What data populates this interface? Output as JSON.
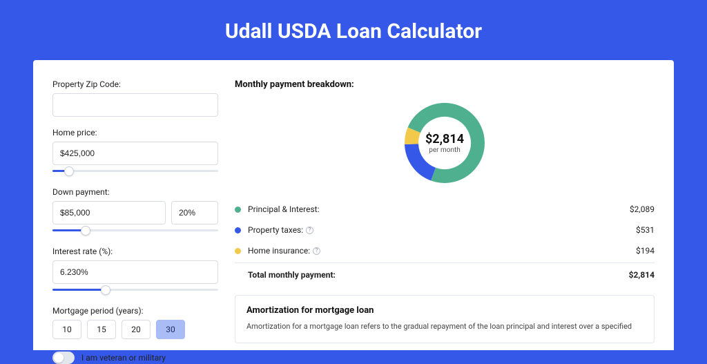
{
  "title": "Udall USDA Loan Calculator",
  "colors": {
    "page_bg": "#3558e8",
    "panel_bg": "#ffffff",
    "principal": "#4fb08f",
    "taxes": "#3558e8",
    "insurance": "#f3c94b",
    "track": "#e2e6ed",
    "border": "#d9dde3"
  },
  "form": {
    "zip": {
      "label": "Property Zip Code:",
      "value": ""
    },
    "home_price": {
      "label": "Home price:",
      "value": "$425,000",
      "slider_pct": 10
    },
    "down_payment": {
      "label": "Down payment:",
      "value": "$85,000",
      "pct_value": "20%",
      "slider_pct": 20
    },
    "interest": {
      "label": "Interest rate (%):",
      "value": "6.230%",
      "slider_pct": 32
    },
    "period": {
      "label": "Mortgage period (years):",
      "options": [
        "10",
        "15",
        "20",
        "30"
      ],
      "selected": "30"
    },
    "veteran": {
      "label": "I am veteran or military",
      "checked": false
    }
  },
  "breakdown": {
    "title": "Monthly payment breakdown:",
    "total_value": "$2,814",
    "total_sub": "per month",
    "items": [
      {
        "key": "principal",
        "label": "Principal & Interest:",
        "amount": "$2,089",
        "color": "#4fb08f",
        "info": false,
        "fraction": 0.742
      },
      {
        "key": "taxes",
        "label": "Property taxes:",
        "amount": "$531",
        "color": "#3558e8",
        "info": true,
        "fraction": 0.189
      },
      {
        "key": "insurance",
        "label": "Home insurance:",
        "amount": "$194",
        "color": "#f3c94b",
        "info": true,
        "fraction": 0.069
      }
    ],
    "total_row": {
      "label": "Total monthly payment:",
      "amount": "$2,814"
    }
  },
  "amortization": {
    "title": "Amortization for mortgage loan",
    "text": "Amortization for a mortgage loan refers to the gradual repayment of the loan principal and interest over a specified"
  },
  "donut": {
    "radius": 48,
    "stroke": 20,
    "segments": [
      {
        "color": "#3558e8",
        "start": 200,
        "sweep": 68
      },
      {
        "color": "#f3c94b",
        "start": 268,
        "sweep": 25
      },
      {
        "color": "#4fb08f",
        "start": 293,
        "sweep": 267
      }
    ]
  }
}
